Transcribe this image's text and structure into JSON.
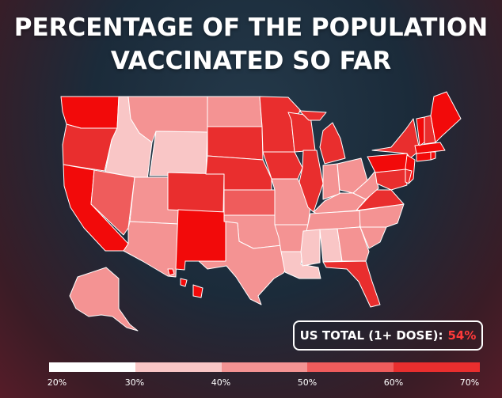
{
  "title": {
    "line1": "PERCENTAGE OF THE POPULATION",
    "line2": "VACCINATED SO FAR"
  },
  "total": {
    "label": "US TOTAL (1+ DOSE):",
    "value": "54%"
  },
  "colors": {
    "tier_20_30": "#ffffff",
    "tier_30_40": "#f9c6c6",
    "tier_40_50": "#f49393",
    "tier_50_60": "#ef5c5c",
    "tier_60_70": "#e92e2e",
    "tier_70": "#f20a0a",
    "border": "#ffffff"
  },
  "scale": {
    "labels": [
      "20%",
      "30%",
      "40%",
      "50%",
      "60%",
      "70%"
    ]
  },
  "states": {
    "WA": "tier_70",
    "OR": "tier_60_70",
    "CA": "tier_70",
    "ID": "tier_30_40",
    "NV": "tier_50_60",
    "MT": "tier_40_50",
    "WY": "tier_30_40",
    "UT": "tier_40_50",
    "AZ": "tier_40_50",
    "CO": "tier_60_70",
    "NM": "tier_70",
    "ND": "tier_40_50",
    "SD": "tier_60_70",
    "NE": "tier_60_70",
    "KS": "tier_50_60",
    "OK": "tier_40_50",
    "TX": "tier_40_50",
    "MN": "tier_60_70",
    "IA": "tier_60_70",
    "MO": "tier_40_50",
    "AR": "tier_40_50",
    "LA": "tier_30_40",
    "WI": "tier_60_70",
    "IL": "tier_60_70",
    "MI": "tier_60_70",
    "IN": "tier_40_50",
    "OH": "tier_40_50",
    "KY": "tier_40_50",
    "TN": "tier_40_50",
    "MS": "tier_30_40",
    "AL": "tier_30_40",
    "GA": "tier_40_50",
    "FL": "tier_60_70",
    "SC": "tier_40_50",
    "NC": "tier_40_50",
    "VA": "tier_60_70",
    "WV": "tier_40_50",
    "PA": "tier_70",
    "NY": "tier_60_70",
    "NJ": "tier_70",
    "MD": "tier_60_70",
    "DE": "tier_60_70",
    "CT": "tier_70",
    "RI": "tier_70",
    "MA": "tier_70",
    "VT": "tier_70",
    "NH": "tier_60_70",
    "ME": "tier_70",
    "AK": "tier_40_50",
    "HI": "tier_70"
  }
}
